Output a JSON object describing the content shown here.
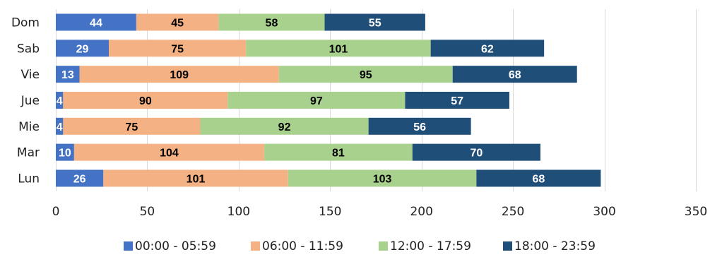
{
  "chart_data": {
    "type": "bar",
    "orientation": "horizontal",
    "stacked": true,
    "categories": [
      "Dom",
      "Sab",
      "Vie",
      "Jue",
      "Mie",
      "Mar",
      "Lun"
    ],
    "series": [
      {
        "name": "00:00 - 05:59",
        "color": "#4472C4",
        "label_color": "#ffffff",
        "values": [
          44,
          29,
          13,
          4,
          4,
          10,
          26
        ]
      },
      {
        "name": "06:00 - 11:59",
        "color": "#F4B183",
        "label_color": "#000000",
        "values": [
          45,
          75,
          109,
          90,
          75,
          104,
          101
        ]
      },
      {
        "name": "12:00 - 17:59",
        "color": "#A9D18E",
        "label_color": "#000000",
        "values": [
          58,
          101,
          95,
          97,
          92,
          81,
          103
        ]
      },
      {
        "name": "18:00 - 23:59",
        "color": "#1F4E79",
        "label_color": "#ffffff",
        "values": [
          55,
          62,
          68,
          57,
          56,
          70,
          68
        ]
      }
    ],
    "xlim": [
      0,
      350
    ],
    "xticks": [
      0,
      50,
      100,
      150,
      200,
      250,
      300,
      350
    ],
    "grid": true,
    "legend_position": "bottom",
    "title": "",
    "xlabel": "",
    "ylabel": ""
  }
}
